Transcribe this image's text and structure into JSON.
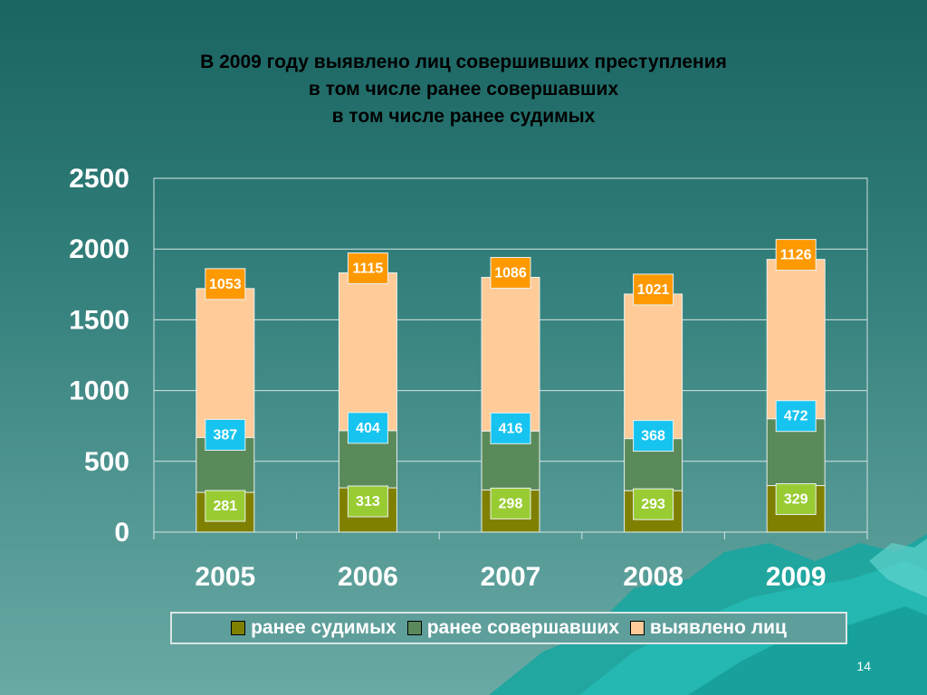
{
  "slide": {
    "title_lines": [
      "В 2009 году выявлено лиц совершивших преступления",
      "в том числе ранее совершавших",
      "в том числе ранее судимых"
    ],
    "page_number": "14"
  },
  "colors": {
    "series_1": "#808000",
    "series_2": "#5a8a5a",
    "series_3": "#ffcc99",
    "label_1_bg": "#99cc33",
    "label_2_bg": "#17c4f0",
    "label_3_bg": "#ff9900"
  },
  "chart_data": {
    "type": "bar",
    "stacked": true,
    "categories": [
      "2005",
      "2006",
      "2007",
      "2008",
      "2009"
    ],
    "series": [
      {
        "name": "ранее судимых",
        "values": [
          281,
          313,
          298,
          293,
          329
        ]
      },
      {
        "name": "ранее совершавших",
        "values": [
          387,
          404,
          416,
          368,
          472
        ]
      },
      {
        "name": "выявлено лиц",
        "values": [
          1053,
          1115,
          1086,
          1021,
          1126
        ]
      }
    ],
    "y_ticks": [
      "0",
      "500",
      "1000",
      "1500",
      "2000",
      "2500"
    ],
    "ylim": [
      0,
      2500
    ],
    "grid": true,
    "legend_position": "bottom"
  }
}
